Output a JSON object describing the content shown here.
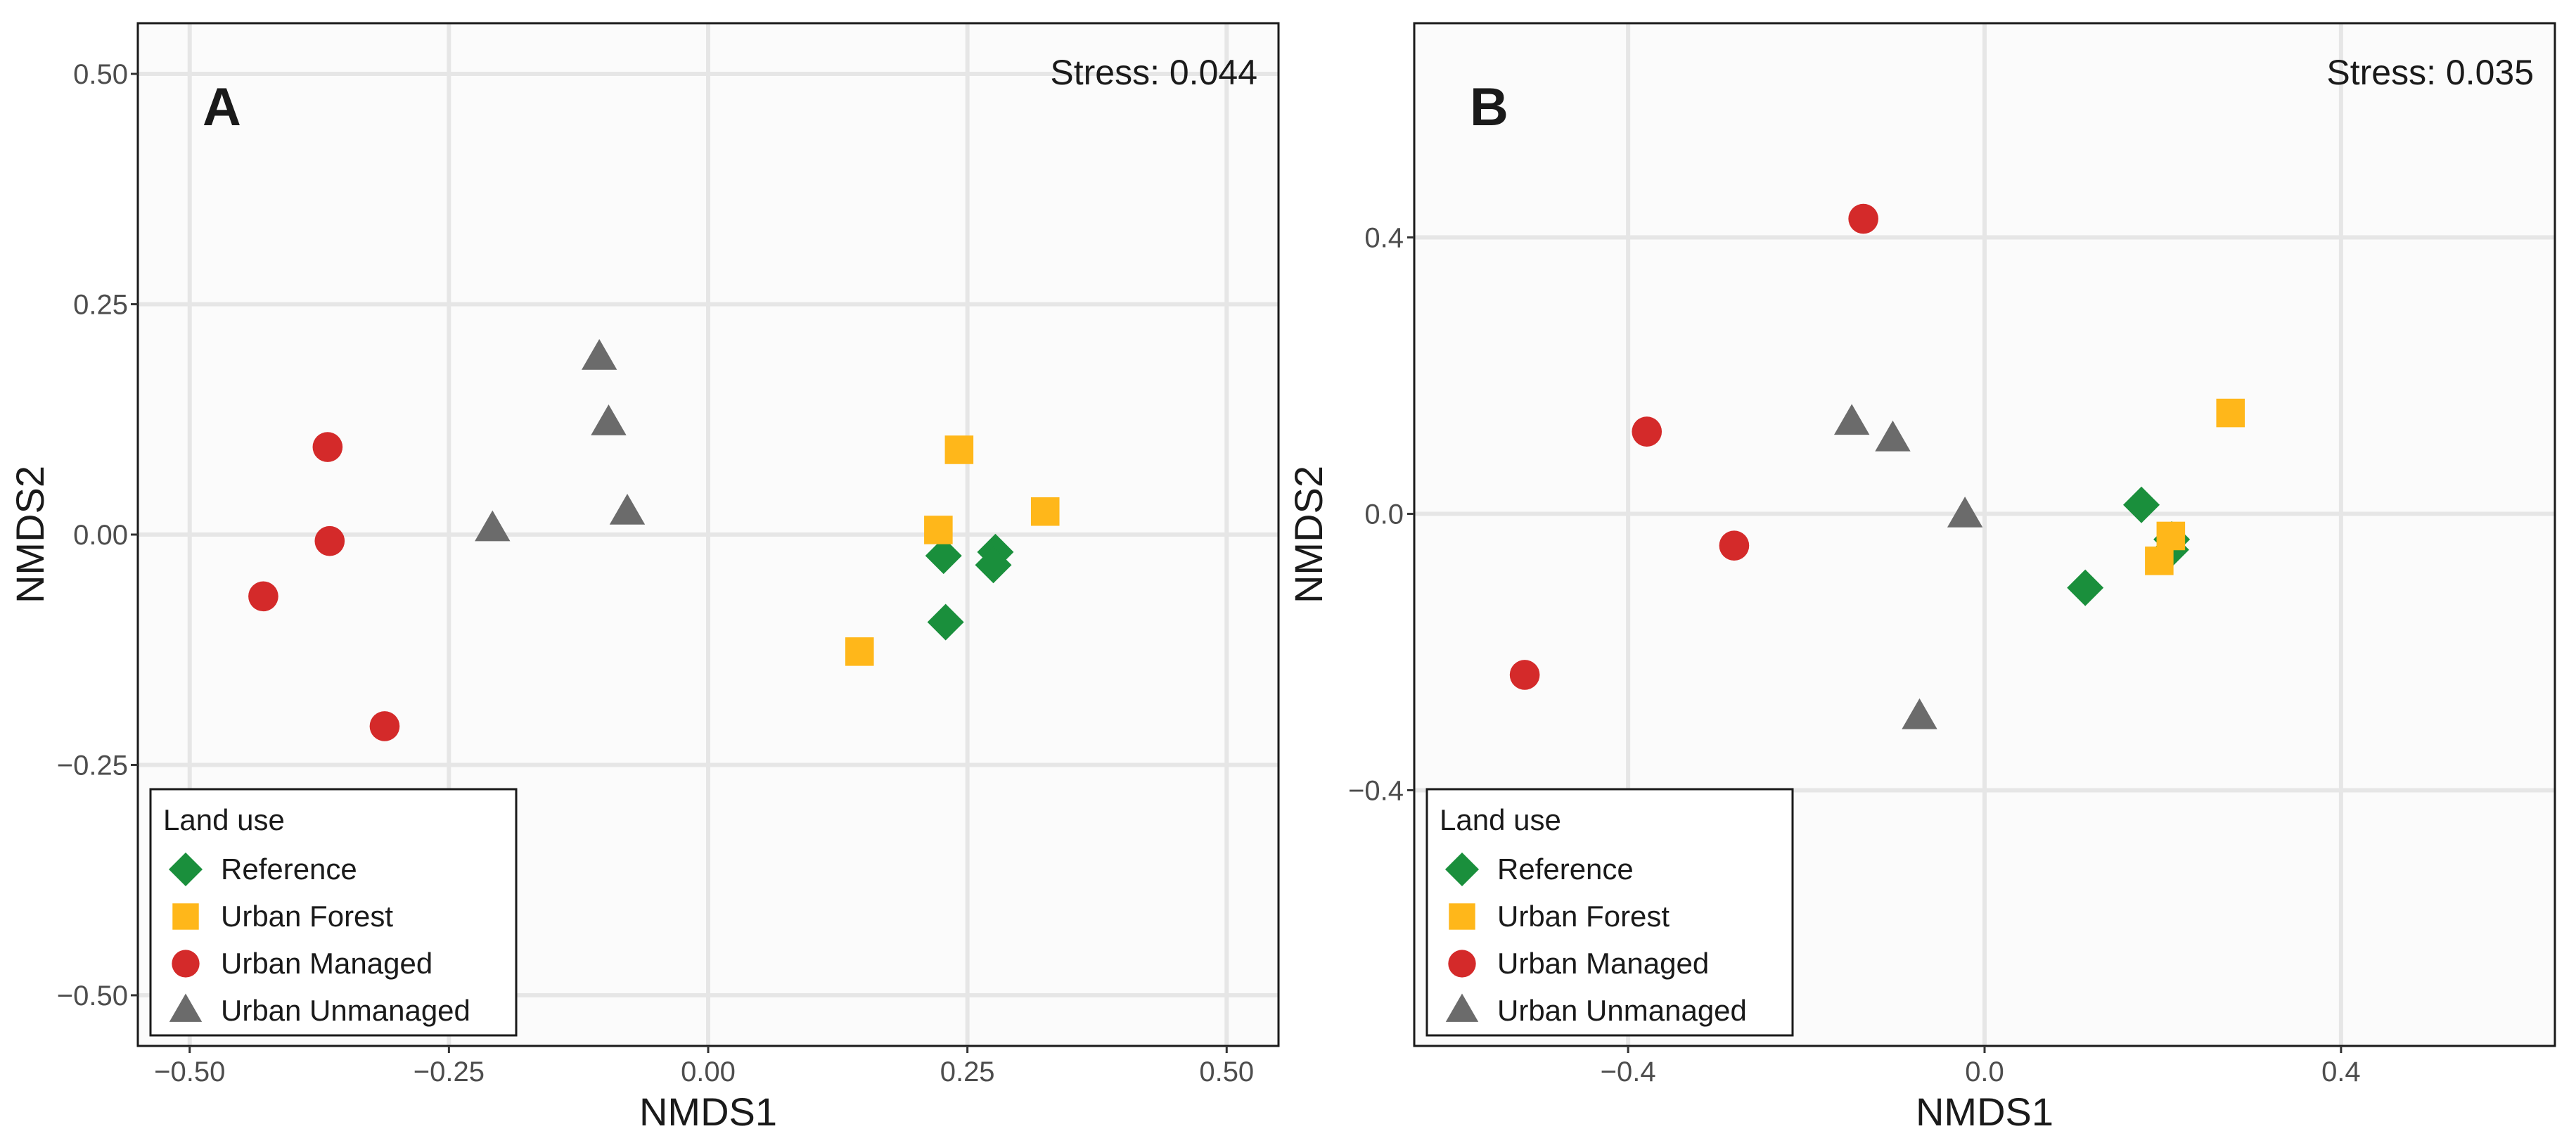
{
  "chart_data": [
    {
      "type": "scatter",
      "panel": "A",
      "annotation": "Stress: 0.044",
      "xlabel": "NMDS1",
      "ylabel": "NMDS2",
      "xlim": [
        -0.55,
        0.55
      ],
      "ylim": [
        -0.555,
        0.555
      ],
      "xticks": [
        -0.5,
        -0.25,
        0.0,
        0.25,
        0.5
      ],
      "xtick_labels": [
        "−0.50",
        "−0.25",
        "0.00",
        "0.25",
        "0.50"
      ],
      "yticks": [
        -0.5,
        -0.25,
        0.0,
        0.25,
        0.5
      ],
      "ytick_labels": [
        "−0.50",
        "−0.25",
        "0.00",
        "0.25",
        "0.50"
      ],
      "grid": true,
      "legend": {
        "title": "Land use",
        "position": "bottom-left"
      },
      "series": [
        {
          "name": "Reference",
          "marker": "diamond",
          "color": "#1a8f3c",
          "x": [
            0.227,
            0.277,
            0.275,
            0.229
          ],
          "y": [
            -0.023,
            -0.019,
            -0.033,
            -0.095
          ]
        },
        {
          "name": "Urban Forest",
          "marker": "square",
          "color": "#ffb71a",
          "x": [
            0.242,
            0.222,
            0.325,
            0.146
          ],
          "y": [
            0.092,
            0.005,
            0.025,
            -0.127
          ]
        },
        {
          "name": "Urban Managed",
          "marker": "circle",
          "color": "#d42a2a",
          "x": [
            -0.367,
            -0.365,
            -0.429,
            -0.312
          ],
          "y": [
            0.095,
            -0.007,
            -0.067,
            -0.208
          ]
        },
        {
          "name": "Urban Unmanaged",
          "marker": "triangle",
          "color": "#6b6b6b",
          "x": [
            -0.105,
            -0.096,
            -0.078,
            -0.208
          ],
          "y": [
            0.192,
            0.121,
            0.024,
            0.006
          ]
        }
      ]
    },
    {
      "type": "scatter",
      "panel": "B",
      "annotation": "Stress: 0.035",
      "xlabel": "NMDS1",
      "ylabel": "NMDS2",
      "xlim": [
        -0.64,
        0.64
      ],
      "ylim": [
        -0.77,
        0.71
      ],
      "xticks": [
        -0.4,
        0.0,
        0.4
      ],
      "xtick_labels": [
        "−0.4",
        "0.0",
        "0.4"
      ],
      "yticks": [
        -0.4,
        0.0,
        0.4
      ],
      "ytick_labels": [
        "−0.4",
        "0.0",
        "0.4"
      ],
      "grid": true,
      "legend": {
        "title": "Land use",
        "position": "bottom-left"
      },
      "series": [
        {
          "name": "Reference",
          "marker": "diamond",
          "color": "#1a8f3c",
          "x": [
            0.176,
            0.21,
            0.209,
            0.113
          ],
          "y": [
            0.013,
            -0.037,
            -0.052,
            -0.107
          ]
        },
        {
          "name": "Urban Forest",
          "marker": "square",
          "color": "#ffb71a",
          "x": [
            0.276,
            0.209,
            0.196
          ],
          "y": [
            0.146,
            -0.032,
            -0.068
          ]
        },
        {
          "name": "Urban Managed",
          "marker": "circle",
          "color": "#d42a2a",
          "x": [
            -0.136,
            -0.379,
            -0.281,
            -0.516
          ],
          "y": [
            0.427,
            0.119,
            -0.046,
            -0.233
          ]
        },
        {
          "name": "Urban Unmanaged",
          "marker": "triangle",
          "color": "#6b6b6b",
          "x": [
            -0.149,
            -0.103,
            -0.022,
            -0.073
          ],
          "y": [
            0.132,
            0.108,
            -0.002,
            -0.294
          ]
        }
      ]
    }
  ]
}
